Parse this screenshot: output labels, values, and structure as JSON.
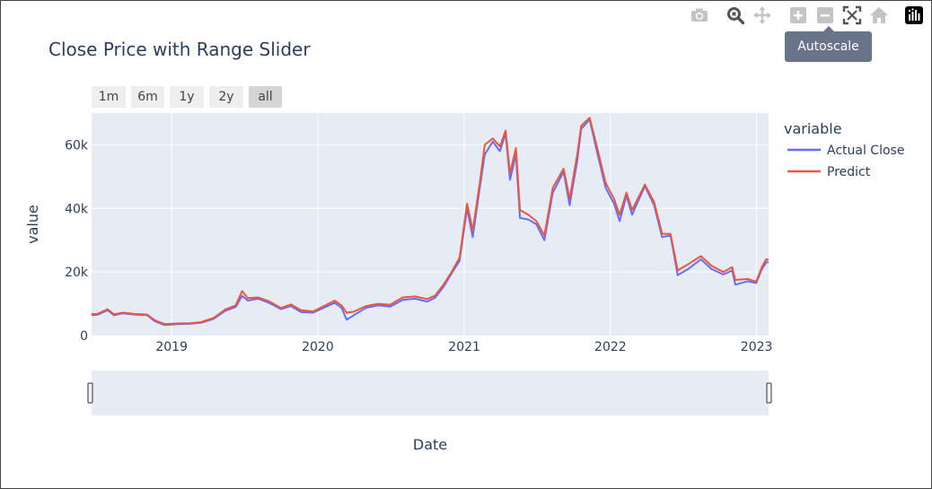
{
  "title": "Close Price with Range Slider",
  "range_selector": [
    {
      "label": "1m",
      "active": false
    },
    {
      "label": "6m",
      "active": false
    },
    {
      "label": "1y",
      "active": false
    },
    {
      "label": "2y",
      "active": false
    },
    {
      "label": "all",
      "active": true
    }
  ],
  "tooltip": "Autoscale",
  "modebar": [
    "camera-icon",
    "zoom-icon",
    "pan-icon",
    "zoom-in-icon",
    "zoom-out-icon",
    "autoscale-icon",
    "reset-axes-icon",
    "plotly-logo-icon"
  ],
  "chart_data": {
    "type": "line",
    "title": "Close Price with Range Slider",
    "xlabel": "Date",
    "ylabel": "value",
    "xlim": [
      "2018-06-15",
      "2023-01-31"
    ],
    "ylim": [
      0,
      70000
    ],
    "xticks": [
      "2019",
      "2020",
      "2021",
      "2022",
      "2023"
    ],
    "yticks": [
      {
        "value": 0,
        "label": "0"
      },
      {
        "value": 20000,
        "label": "20k"
      },
      {
        "value": 40000,
        "label": "40k"
      },
      {
        "value": 60000,
        "label": "60k"
      }
    ],
    "grid": true,
    "legend": {
      "title": "variable",
      "placement": "right"
    },
    "range_slider": true,
    "series": [
      {
        "name": "Actual Close",
        "color": "#636efa",
        "points": [
          [
            "2018-06-15",
            6400
          ],
          [
            "2018-07-01",
            6600
          ],
          [
            "2018-07-25",
            8000
          ],
          [
            "2018-08-10",
            6400
          ],
          [
            "2018-09-01",
            7000
          ],
          [
            "2018-10-01",
            6600
          ],
          [
            "2018-11-01",
            6400
          ],
          [
            "2018-11-20",
            4500
          ],
          [
            "2018-12-15",
            3300
          ],
          [
            "2019-01-15",
            3600
          ],
          [
            "2019-02-15",
            3700
          ],
          [
            "2019-03-15",
            4000
          ],
          [
            "2019-04-15",
            5200
          ],
          [
            "2019-05-15",
            7800
          ],
          [
            "2019-06-10",
            9000
          ],
          [
            "2019-06-26",
            12500
          ],
          [
            "2019-07-10",
            11000
          ],
          [
            "2019-08-05",
            11600
          ],
          [
            "2019-09-01",
            10300
          ],
          [
            "2019-10-01",
            8300
          ],
          [
            "2019-10-26",
            9300
          ],
          [
            "2019-11-20",
            7400
          ],
          [
            "2019-12-20",
            7200
          ],
          [
            "2020-01-15",
            8700
          ],
          [
            "2020-02-12",
            10300
          ],
          [
            "2020-03-01",
            8600
          ],
          [
            "2020-03-13",
            5000
          ],
          [
            "2020-03-31",
            6400
          ],
          [
            "2020-04-30",
            8700
          ],
          [
            "2020-05-31",
            9500
          ],
          [
            "2020-06-30",
            9100
          ],
          [
            "2020-07-31",
            11200
          ],
          [
            "2020-08-31",
            11600
          ],
          [
            "2020-09-30",
            10700
          ],
          [
            "2020-10-20",
            11900
          ],
          [
            "2020-11-10",
            15300
          ],
          [
            "2020-11-30",
            19500
          ],
          [
            "2020-12-20",
            23500
          ],
          [
            "2021-01-08",
            40000
          ],
          [
            "2021-01-22",
            31000
          ],
          [
            "2021-02-08",
            46000
          ],
          [
            "2021-02-21",
            57000
          ],
          [
            "2021-03-13",
            61000
          ],
          [
            "2021-03-31",
            58000
          ],
          [
            "2021-04-14",
            63500
          ],
          [
            "2021-04-25",
            49000
          ],
          [
            "2021-05-10",
            57000
          ],
          [
            "2021-05-20",
            37000
          ],
          [
            "2021-06-10",
            36500
          ],
          [
            "2021-06-30",
            35000
          ],
          [
            "2021-07-20",
            30000
          ],
          [
            "2021-08-10",
            45000
          ],
          [
            "2021-09-06",
            51500
          ],
          [
            "2021-09-21",
            41000
          ],
          [
            "2021-10-10",
            55000
          ],
          [
            "2021-10-20",
            65000
          ],
          [
            "2021-11-10",
            68000
          ],
          [
            "2021-11-30",
            57000
          ],
          [
            "2021-12-20",
            46500
          ],
          [
            "2022-01-10",
            41500
          ],
          [
            "2022-01-24",
            36000
          ],
          [
            "2022-02-10",
            44000
          ],
          [
            "2022-02-24",
            38000
          ],
          [
            "2022-03-28",
            47000
          ],
          [
            "2022-04-20",
            41000
          ],
          [
            "2022-05-10",
            31000
          ],
          [
            "2022-05-31",
            31500
          ],
          [
            "2022-06-18",
            19000
          ],
          [
            "2022-07-15",
            21000
          ],
          [
            "2022-08-15",
            24000
          ],
          [
            "2022-09-10",
            21000
          ],
          [
            "2022-10-10",
            19200
          ],
          [
            "2022-11-01",
            20500
          ],
          [
            "2022-11-09",
            16000
          ],
          [
            "2022-12-10",
            17100
          ],
          [
            "2022-12-31",
            16500
          ],
          [
            "2023-01-14",
            20800
          ],
          [
            "2023-01-25",
            23000
          ],
          [
            "2023-01-31",
            23100
          ]
        ]
      },
      {
        "name": "Predict",
        "color": "#ef553b",
        "points": [
          [
            "2018-06-15",
            6700
          ],
          [
            "2018-07-01",
            6900
          ],
          [
            "2018-07-25",
            8300
          ],
          [
            "2018-08-10",
            6700
          ],
          [
            "2018-09-01",
            7200
          ],
          [
            "2018-10-01",
            6800
          ],
          [
            "2018-11-01",
            6600
          ],
          [
            "2018-11-20",
            4800
          ],
          [
            "2018-12-15",
            3600
          ],
          [
            "2019-01-15",
            3800
          ],
          [
            "2019-02-15",
            3900
          ],
          [
            "2019-03-15",
            4200
          ],
          [
            "2019-04-15",
            5500
          ],
          [
            "2019-05-15",
            8200
          ],
          [
            "2019-06-10",
            9500
          ],
          [
            "2019-06-26",
            14000
          ],
          [
            "2019-07-10",
            11800
          ],
          [
            "2019-08-05",
            12000
          ],
          [
            "2019-09-01",
            10800
          ],
          [
            "2019-10-01",
            8700
          ],
          [
            "2019-10-26",
            9800
          ],
          [
            "2019-11-20",
            8000
          ],
          [
            "2019-12-20",
            7600
          ],
          [
            "2020-01-15",
            9200
          ],
          [
            "2020-02-12",
            11000
          ],
          [
            "2020-03-01",
            9400
          ],
          [
            "2020-03-13",
            7200
          ],
          [
            "2020-03-31",
            7500
          ],
          [
            "2020-04-30",
            9300
          ],
          [
            "2020-05-31",
            10000
          ],
          [
            "2020-06-30",
            9700
          ],
          [
            "2020-07-31",
            12000
          ],
          [
            "2020-08-31",
            12300
          ],
          [
            "2020-09-30",
            11500
          ],
          [
            "2020-10-20",
            12600
          ],
          [
            "2020-11-10",
            16000
          ],
          [
            "2020-11-30",
            20000
          ],
          [
            "2020-12-20",
            24500
          ],
          [
            "2021-01-08",
            41500
          ],
          [
            "2021-01-22",
            33000
          ],
          [
            "2021-02-08",
            47500
          ],
          [
            "2021-02-21",
            60000
          ],
          [
            "2021-03-13",
            62000
          ],
          [
            "2021-03-31",
            59500
          ],
          [
            "2021-04-14",
            64500
          ],
          [
            "2021-04-25",
            51000
          ],
          [
            "2021-05-10",
            59000
          ],
          [
            "2021-05-20",
            39500
          ],
          [
            "2021-06-10",
            38000
          ],
          [
            "2021-06-30",
            36000
          ],
          [
            "2021-07-20",
            31500
          ],
          [
            "2021-08-10",
            46500
          ],
          [
            "2021-09-06",
            52500
          ],
          [
            "2021-09-21",
            43000
          ],
          [
            "2021-10-10",
            57000
          ],
          [
            "2021-10-20",
            66000
          ],
          [
            "2021-11-10",
            68500
          ],
          [
            "2021-11-30",
            58500
          ],
          [
            "2021-12-20",
            48000
          ],
          [
            "2022-01-10",
            43000
          ],
          [
            "2022-01-24",
            38000
          ],
          [
            "2022-02-10",
            45000
          ],
          [
            "2022-02-24",
            39500
          ],
          [
            "2022-03-28",
            47500
          ],
          [
            "2022-04-20",
            42000
          ],
          [
            "2022-05-10",
            32000
          ],
          [
            "2022-05-31",
            32000
          ],
          [
            "2022-06-18",
            20500
          ],
          [
            "2022-07-15",
            22500
          ],
          [
            "2022-08-15",
            25000
          ],
          [
            "2022-09-10",
            22000
          ],
          [
            "2022-10-10",
            20000
          ],
          [
            "2022-11-01",
            21500
          ],
          [
            "2022-11-09",
            17500
          ],
          [
            "2022-12-10",
            17800
          ],
          [
            "2022-12-31",
            17000
          ],
          [
            "2023-01-14",
            21500
          ],
          [
            "2023-01-25",
            24000
          ],
          [
            "2023-01-31",
            23800
          ]
        ]
      }
    ]
  }
}
